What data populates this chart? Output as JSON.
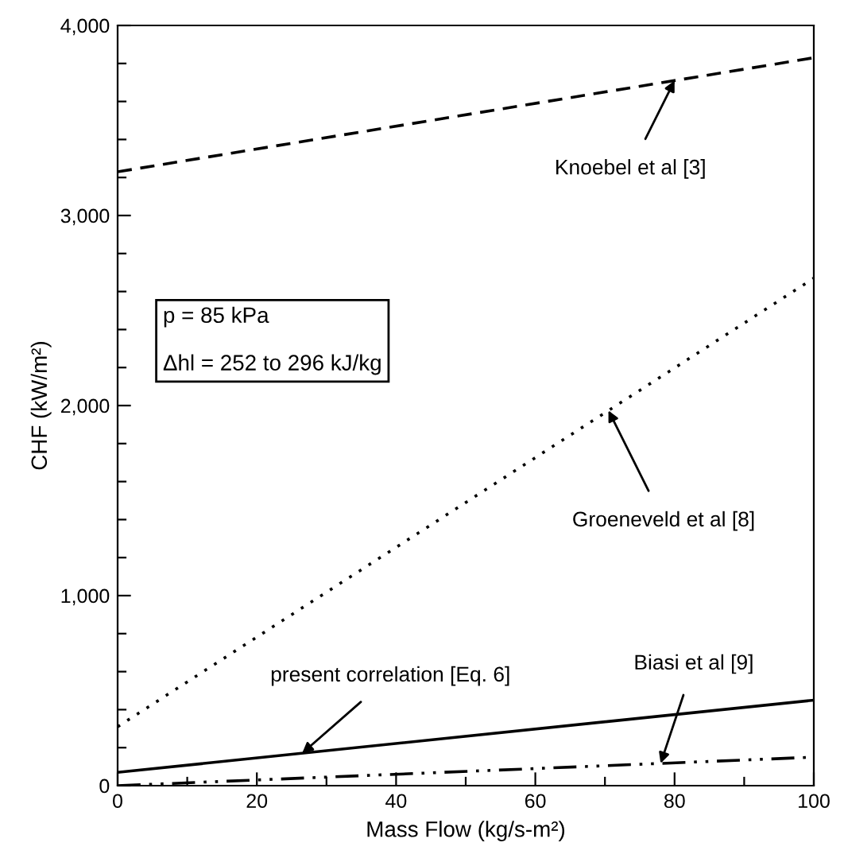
{
  "chart_data": {
    "type": "line",
    "xlabel": "Mass Flow (kg/s-m²)",
    "ylabel": "CHF (kW/m²)",
    "x": [
      0,
      100
    ],
    "series": [
      {
        "color": "#000000",
        "line_style": "dashed",
        "values": [
          3230,
          3830
        ]
      },
      {
        "color": "#000000",
        "line_style": "dotted",
        "values": [
          310,
          2670
        ]
      },
      {
        "color": "#000000",
        "line_style": "solid",
        "values": [
          70,
          450
        ]
      },
      {
        "color": "#000000",
        "line_style": "dashdotdot",
        "values": [
          0,
          150
        ]
      }
    ],
    "xlim": [
      0,
      100
    ],
    "ylim": [
      0,
      4000
    ],
    "xticks": [
      0,
      {
        "value": 10,
        "label": null
      },
      20,
      {
        "value": 30,
        "label": null
      },
      40,
      {
        "value": 50,
        "label": null
      },
      60,
      {
        "value": 70,
        "label": null
      },
      80,
      {
        "value": 90,
        "label": null
      },
      100
    ],
    "yticks": [
      {
        "value": 0,
        "label": "0"
      },
      {
        "value": 200,
        "label": null
      },
      {
        "value": 400,
        "label": null
      },
      {
        "value": 600,
        "label": null
      },
      {
        "value": 800,
        "label": null
      },
      {
        "value": 1000,
        "label": "1,000"
      },
      {
        "value": 1200,
        "label": null
      },
      {
        "value": 1400,
        "label": null
      },
      {
        "value": 1600,
        "label": null
      },
      {
        "value": 1800,
        "label": null
      },
      {
        "value": 2000,
        "label": "2,000"
      },
      {
        "value": 2200,
        "label": null
      },
      {
        "value": 2400,
        "label": null
      },
      {
        "value": 2600,
        "label": null
      },
      {
        "value": 2800,
        "label": null
      },
      {
        "value": 3000,
        "label": "3,000"
      },
      {
        "value": 3200,
        "label": null
      },
      {
        "value": 3400,
        "label": null
      },
      {
        "value": 3600,
        "label": null
      },
      {
        "value": 3800,
        "label": null
      },
      {
        "value": 4000,
        "label": "4,000"
      }
    ],
    "grid": false,
    "legend": false,
    "annotations": [
      {
        "text": "Knoebel et al [3]",
        "x": 80,
        "y": 3710
      },
      {
        "text": "Groeneveld et al [8]",
        "x": 70.5,
        "y": 1974
      },
      {
        "text": "Biasi et al [9]",
        "x": 78,
        "y": 117
      },
      {
        "text": "present correlation [Eq. 6]",
        "x": 26.5,
        "y": 170
      },
      "p = 85 kPa\n\nΔhl = 252 to 296 kJ/kg"
    ]
  }
}
